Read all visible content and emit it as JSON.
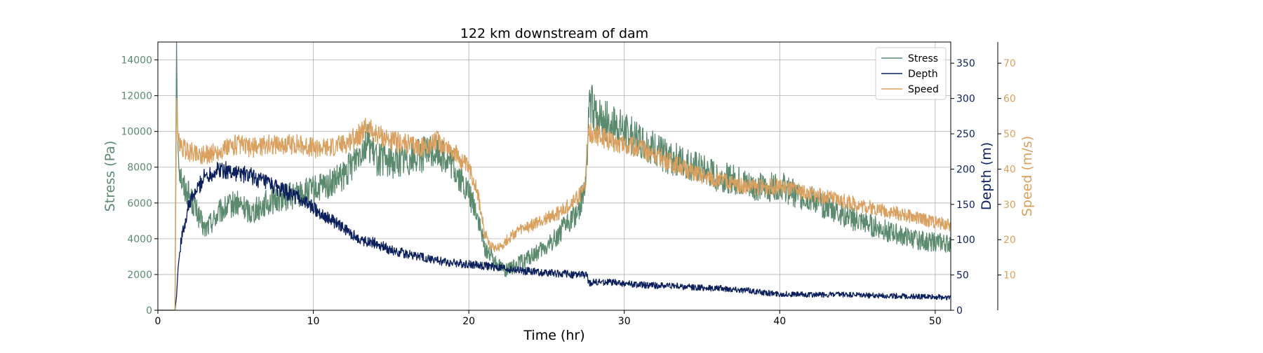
{
  "chart_data": {
    "type": "line",
    "title": "122 km downstream of dam",
    "xlabel": "Time (hr)",
    "xlim": [
      0,
      51
    ],
    "x_ticks": [
      0,
      10,
      20,
      30,
      40,
      50
    ],
    "grid": true,
    "legend_position": "top-right",
    "axes": {
      "stress": {
        "label": "Stress (Pa)",
        "lim": [
          0,
          15000
        ],
        "ticks": [
          0,
          2000,
          4000,
          6000,
          8000,
          10000,
          12000,
          14000
        ],
        "side": "left",
        "color": "#5b8a6e"
      },
      "depth": {
        "label": "Depth (m)",
        "lim": [
          0,
          380
        ],
        "ticks": [
          0,
          50,
          100,
          150,
          200,
          250,
          300,
          350
        ],
        "side": "right",
        "color": "#0b1f5c"
      },
      "speed": {
        "label": "Speed (m/s)",
        "lim": [
          0,
          76
        ],
        "ticks": [
          10,
          20,
          30,
          40,
          50,
          60,
          70
        ],
        "side": "right-outer",
        "color": "#d9a060"
      }
    },
    "series": [
      {
        "name": "Stress",
        "axis": "stress",
        "color": "#5b8a6e",
        "noise": 0.09,
        "x": [
          0,
          1.1,
          1.2,
          1.25,
          1.3,
          1.4,
          1.6,
          2,
          2.5,
          3,
          3.5,
          4,
          5,
          6,
          7,
          8,
          9,
          10,
          11,
          12,
          13,
          13.5,
          14,
          15,
          16,
          17,
          18,
          19,
          20,
          20.5,
          21,
          21.5,
          22,
          22.5,
          23,
          24,
          25,
          26,
          27,
          27.5,
          27.8,
          28,
          29,
          30,
          31,
          32,
          33,
          34,
          35,
          36,
          37,
          38,
          39,
          40,
          41,
          42,
          43,
          44,
          45,
          46,
          47,
          48,
          49,
          50,
          51
        ],
        "y": [
          0,
          0,
          15000,
          11000,
          9000,
          8000,
          7000,
          6500,
          5500,
          4500,
          5000,
          5500,
          6000,
          5500,
          6000,
          6300,
          6500,
          6700,
          7000,
          7500,
          9000,
          9500,
          8500,
          8300,
          8500,
          8700,
          9000,
          8000,
          6500,
          5500,
          3500,
          3000,
          2500,
          2200,
          2500,
          3000,
          3500,
          4500,
          5500,
          7000,
          12000,
          11000,
          10500,
          10000,
          9500,
          9000,
          8500,
          8200,
          7800,
          7500,
          7300,
          7000,
          6800,
          7000,
          6500,
          6200,
          5800,
          5400,
          5000,
          4700,
          4400,
          4100,
          3900,
          3800,
          3700
        ]
      },
      {
        "name": "Depth",
        "axis": "depth",
        "color": "#0b1f5c",
        "noise": 0.05,
        "x": [
          0,
          1.1,
          1.2,
          1.3,
          1.5,
          2,
          2.5,
          3,
          4,
          5,
          6,
          7,
          8,
          9,
          10,
          11,
          12,
          13,
          14,
          15,
          16,
          17,
          18,
          19,
          20,
          21,
          22,
          23,
          24,
          25,
          26,
          27,
          27.6,
          27.7,
          28,
          29,
          30,
          31,
          32,
          33,
          34,
          35,
          36,
          37,
          38,
          39,
          40,
          42,
          44,
          46,
          48,
          50,
          51
        ],
        "y": [
          0,
          0,
          20,
          60,
          100,
          150,
          170,
          190,
          200,
          195,
          190,
          180,
          170,
          160,
          145,
          130,
          115,
          100,
          95,
          85,
          80,
          75,
          70,
          67,
          65,
          63,
          60,
          57,
          55,
          53,
          52,
          50,
          50,
          38,
          40,
          40,
          38,
          36,
          35,
          35,
          33,
          32,
          31,
          30,
          28,
          25,
          23,
          22,
          22,
          21,
          20,
          19,
          18
        ]
      },
      {
        "name": "Speed",
        "axis": "speed",
        "color": "#d9a060",
        "noise": 0.05,
        "x": [
          0,
          1.1,
          1.2,
          1.3,
          1.5,
          2,
          3,
          4,
          5,
          6,
          7,
          8,
          9,
          10,
          11,
          12,
          13,
          13.5,
          14,
          15,
          16,
          17,
          18,
          19,
          20,
          20.5,
          21,
          21.5,
          22,
          22.5,
          23,
          24,
          25,
          26,
          27,
          27.5,
          27.7,
          28,
          29,
          30,
          31,
          32,
          33,
          34,
          35,
          36,
          37,
          38,
          39,
          40,
          41,
          42,
          43,
          44,
          45,
          46,
          47,
          48,
          49,
          50,
          51
        ],
        "y": [
          0,
          0,
          60,
          48,
          46,
          45,
          44,
          45,
          47,
          46,
          47,
          47,
          47,
          46,
          46,
          47,
          50,
          52,
          50,
          48,
          47,
          46,
          48,
          45,
          40,
          35,
          22,
          18,
          18,
          20,
          22,
          24,
          26,
          28,
          32,
          35,
          50,
          50,
          48,
          47,
          46,
          44,
          42,
          40,
          38,
          37,
          36,
          35,
          35,
          35,
          34,
          33,
          32,
          31,
          30,
          29,
          28,
          27,
          26,
          25,
          24
        ]
      }
    ]
  }
}
